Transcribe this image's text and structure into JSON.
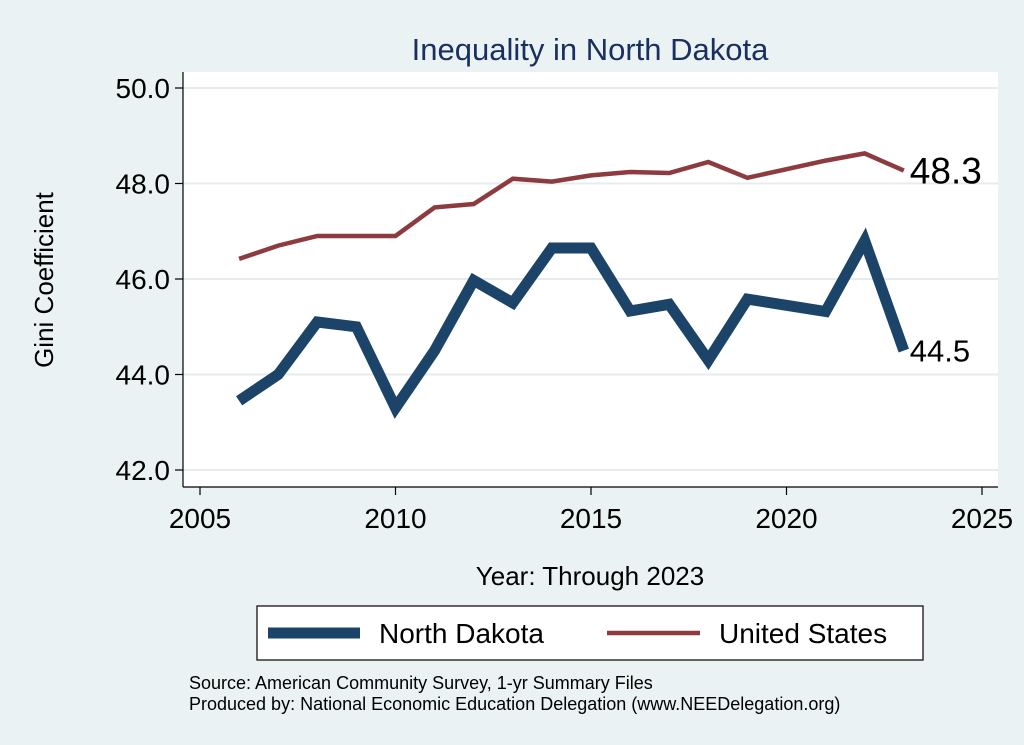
{
  "chart_data": {
    "type": "line",
    "title": "Inequality in North Dakota",
    "xlabel": "Year: Through 2023",
    "ylabel": "Gini Coefficient",
    "xlim": [
      2005,
      2025
    ],
    "ylim": [
      42.0,
      50.0
    ],
    "xticks": [
      "2005",
      "2010",
      "2015",
      "2020",
      "2025"
    ],
    "yticks": [
      "42.0",
      "44.0",
      "46.0",
      "48.0",
      "50.0"
    ],
    "grid": true,
    "legend_position": "bottom",
    "series": [
      {
        "name": "North Dakota",
        "color": "#1b4468",
        "x": [
          2006,
          2007,
          2008,
          2009,
          2010,
          2011,
          2012,
          2013,
          2014,
          2015,
          2016,
          2017,
          2018,
          2019,
          2020,
          2021,
          2022,
          2023
        ],
        "values": [
          43.45,
          44.0,
          45.1,
          45.0,
          43.3,
          44.5,
          45.97,
          45.5,
          46.65,
          46.65,
          45.33,
          45.47,
          44.3,
          45.58,
          45.45,
          45.32,
          46.8,
          44.5
        ],
        "end_label": "44.5"
      },
      {
        "name": "United States",
        "color": "#8e3b40",
        "x": [
          2006,
          2007,
          2008,
          2009,
          2010,
          2011,
          2012,
          2013,
          2014,
          2015,
          2016,
          2017,
          2018,
          2019,
          2020,
          2021,
          2022,
          2023
        ],
        "values": [
          46.42,
          46.7,
          46.9,
          46.9,
          46.9,
          47.5,
          47.57,
          48.1,
          48.04,
          48.17,
          48.24,
          48.22,
          48.45,
          48.12,
          48.3,
          48.48,
          48.63,
          48.27
        ],
        "end_label": "48.3"
      }
    ],
    "annotations": [
      "Source: American Community Survey, 1-yr Summary Files",
      "Produced by: National Economic Education Delegation (www.NEEDelegation.org)"
    ]
  }
}
